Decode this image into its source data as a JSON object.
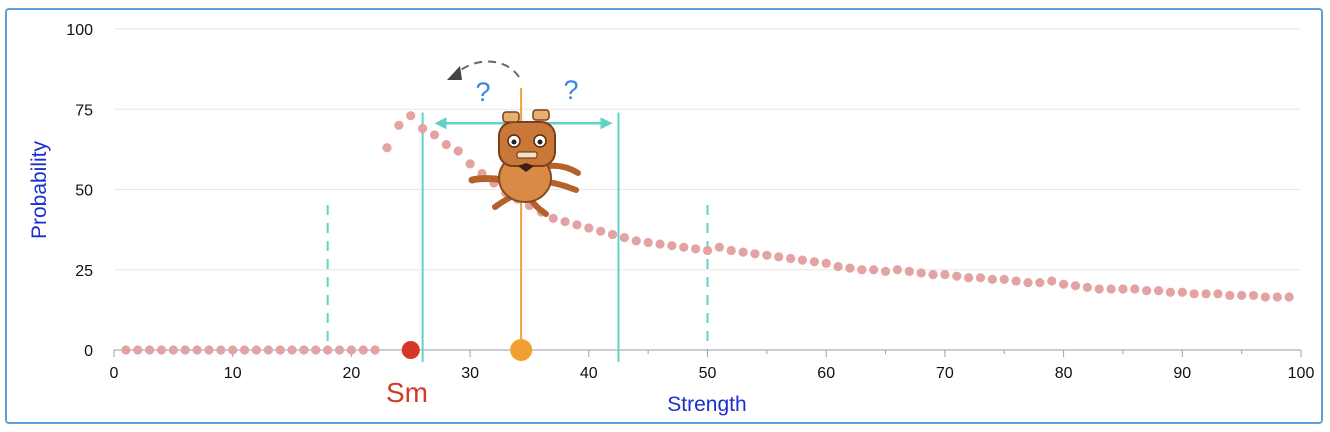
{
  "chart_data": {
    "type": "scatter",
    "xlabel": "Strength",
    "ylabel": "Probability",
    "xlim": [
      0,
      100
    ],
    "ylim": [
      0,
      100
    ],
    "x_ticks": [
      0,
      10,
      20,
      30,
      40,
      50,
      60,
      70,
      80,
      90,
      100
    ],
    "y_ticks": [
      0,
      25,
      50,
      75,
      100
    ],
    "grid": "horizontal",
    "series": [
      {
        "color": "#e3a3a3",
        "points": [
          [
            1,
            0
          ],
          [
            2,
            0
          ],
          [
            3,
            0
          ],
          [
            4,
            0
          ],
          [
            5,
            0
          ],
          [
            6,
            0
          ],
          [
            7,
            0
          ],
          [
            8,
            0
          ],
          [
            9,
            0
          ],
          [
            10,
            0
          ],
          [
            11,
            0
          ],
          [
            12,
            0
          ],
          [
            13,
            0
          ],
          [
            14,
            0
          ],
          [
            15,
            0
          ],
          [
            16,
            0
          ],
          [
            17,
            0
          ],
          [
            18,
            0
          ],
          [
            19,
            0
          ],
          [
            20,
            0
          ],
          [
            21,
            0
          ],
          [
            22,
            0
          ],
          [
            23,
            63
          ],
          [
            24,
            70
          ],
          [
            25,
            73
          ],
          [
            26,
            69
          ],
          [
            27,
            67
          ],
          [
            28,
            64
          ],
          [
            29,
            62
          ],
          [
            30,
            58
          ],
          [
            31,
            55
          ],
          [
            32,
            52
          ],
          [
            33,
            49
          ],
          [
            34,
            47
          ],
          [
            35,
            45
          ],
          [
            36,
            43
          ],
          [
            37,
            41
          ],
          [
            38,
            40
          ],
          [
            39,
            39
          ],
          [
            40,
            38
          ],
          [
            41,
            37
          ],
          [
            42,
            36
          ],
          [
            43,
            35
          ],
          [
            44,
            34
          ],
          [
            45,
            33.5
          ],
          [
            46,
            33
          ],
          [
            47,
            32.5
          ],
          [
            48,
            32
          ],
          [
            49,
            31.5
          ],
          [
            50,
            31
          ],
          [
            51,
            32
          ],
          [
            52,
            31
          ],
          [
            53,
            30.5
          ],
          [
            54,
            30
          ],
          [
            55,
            29.5
          ],
          [
            56,
            29
          ],
          [
            57,
            28.5
          ],
          [
            58,
            28
          ],
          [
            59,
            27.5
          ],
          [
            60,
            27
          ],
          [
            61,
            26
          ],
          [
            62,
            25.5
          ],
          [
            63,
            25
          ],
          [
            64,
            25
          ],
          [
            65,
            24.5
          ],
          [
            66,
            25
          ],
          [
            67,
            24.5
          ],
          [
            68,
            24
          ],
          [
            69,
            23.5
          ],
          [
            70,
            23.5
          ],
          [
            71,
            23
          ],
          [
            72,
            22.5
          ],
          [
            73,
            22.5
          ],
          [
            74,
            22
          ],
          [
            75,
            22
          ],
          [
            76,
            21.5
          ],
          [
            77,
            21
          ],
          [
            78,
            21
          ],
          [
            79,
            21.5
          ],
          [
            80,
            20.5
          ],
          [
            81,
            20
          ],
          [
            82,
            19.5
          ],
          [
            83,
            19
          ],
          [
            84,
            19
          ],
          [
            85,
            19
          ],
          [
            86,
            19
          ],
          [
            87,
            18.5
          ],
          [
            88,
            18.5
          ],
          [
            89,
            18
          ],
          [
            90,
            18
          ],
          [
            91,
            17.5
          ],
          [
            92,
            17.5
          ],
          [
            93,
            17.5
          ],
          [
            94,
            17
          ],
          [
            95,
            17
          ],
          [
            96,
            17
          ],
          [
            97,
            16.5
          ],
          [
            98,
            16.5
          ],
          [
            99,
            16.5
          ]
        ]
      }
    ],
    "markers": {
      "sm": {
        "x": 25,
        "y": 0,
        "color": "#d9362b",
        "label": "Sm"
      },
      "current": {
        "x": 34.3,
        "y": 0,
        "color": "#f0a030",
        "line_color": "#e8a040"
      }
    },
    "dashed_lines_x": [
      18,
      50
    ],
    "solid_lines_x": [
      26,
      42.5
    ],
    "interval_color": "#5fd3c8",
    "interval_arrow": {
      "from": 27,
      "to": 42,
      "y": 70
    },
    "question_marks": [
      "?",
      "?"
    ],
    "arc_arrow_color": "#666666"
  }
}
